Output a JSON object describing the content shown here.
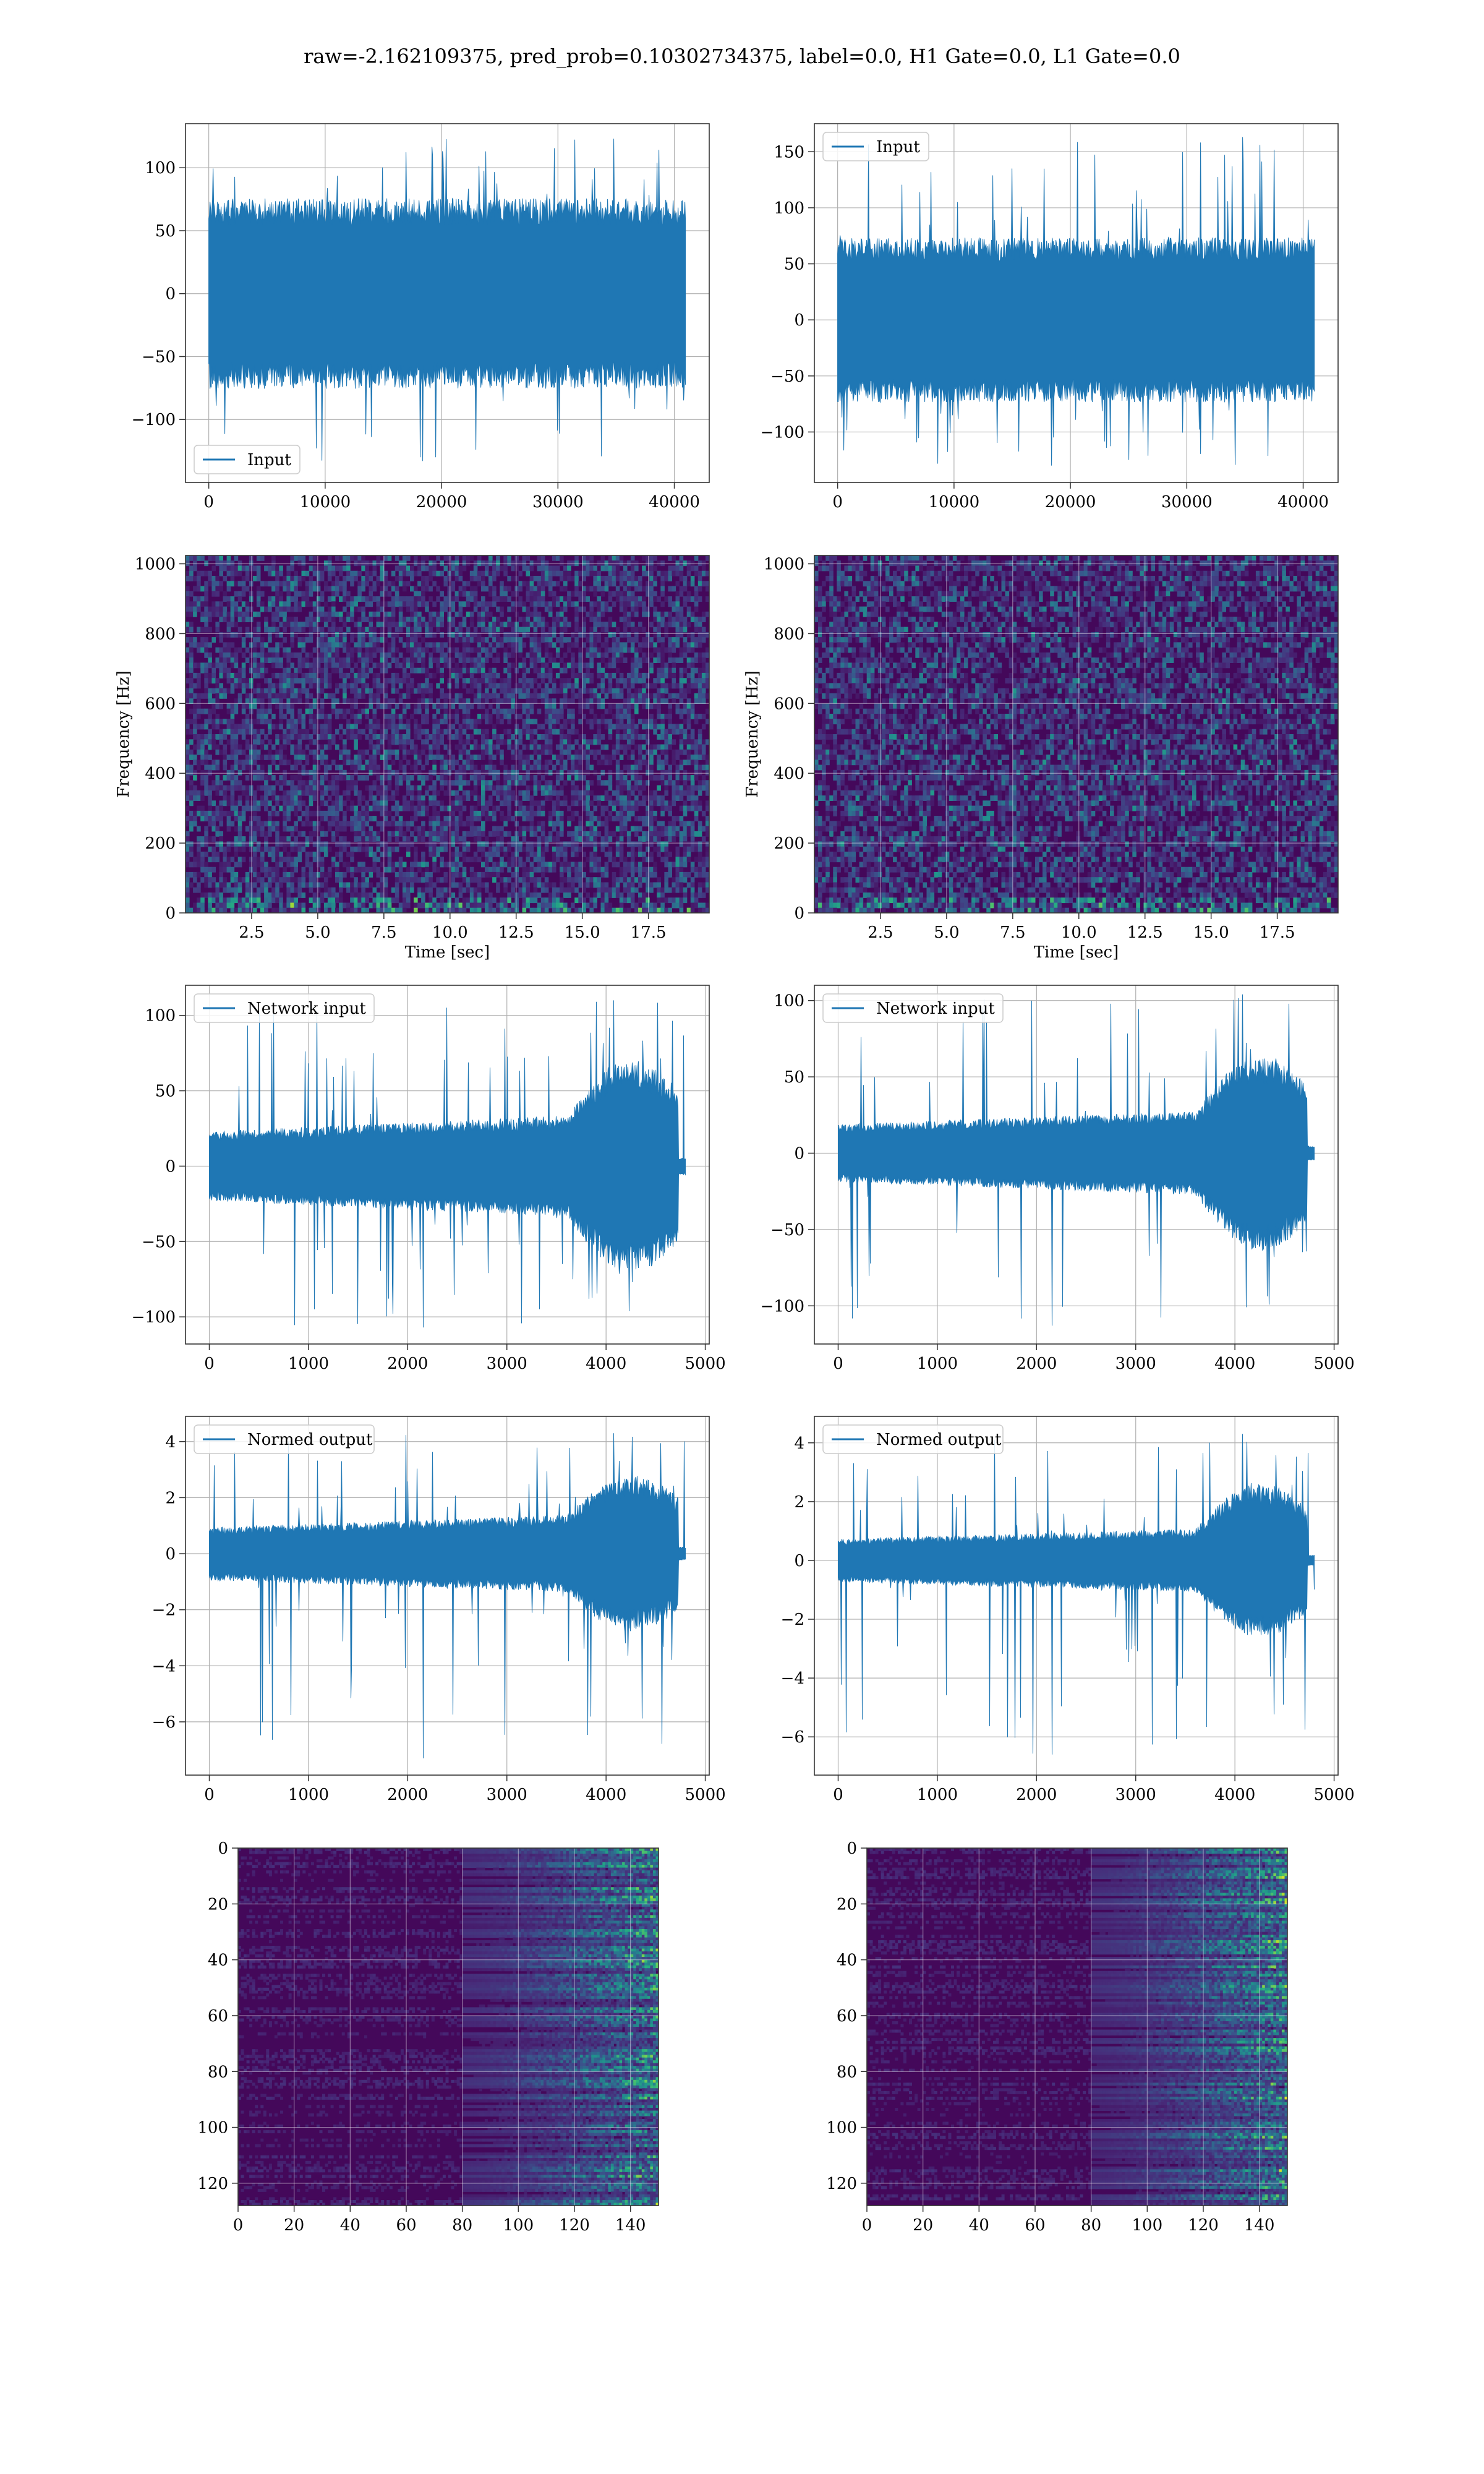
{
  "title": "raw=-2.162109375, pred_prob=0.10302734375, label=0.0, H1 Gate=0.0, L1 Gate=0.0",
  "colors": {
    "line": "#1f77b4",
    "grid": "#b0b0b0",
    "axes": "#333333"
  },
  "chart_data": [
    {
      "id": "h1-input",
      "type": "line",
      "series": [
        {
          "name": "Input",
          "values": []
        }
      ],
      "xlim": [
        -2000,
        43000
      ],
      "ylim": [
        -150,
        135
      ],
      "xticks": [
        0,
        10000,
        20000,
        30000,
        40000
      ],
      "xtick_labels": [
        "0",
        "10000",
        "20000",
        "30000",
        "40000"
      ],
      "yticks": [
        -100,
        -50,
        0,
        50,
        100
      ],
      "ytick_labels": [
        "−100",
        "−50",
        "0",
        "50",
        "100"
      ],
      "legend": "lower-left",
      "grid": true,
      "xlabel": "",
      "ylabel": "",
      "signal": {
        "n_points": 40960,
        "amplitude": 72,
        "spike_max": 123,
        "spike_min": -133
      }
    },
    {
      "id": "l1-input",
      "type": "line",
      "series": [
        {
          "name": "Input",
          "values": []
        }
      ],
      "xlim": [
        -2000,
        43000
      ],
      "ylim": [
        -145,
        175
      ],
      "xticks": [
        0,
        10000,
        20000,
        30000,
        40000
      ],
      "xtick_labels": [
        "0",
        "10000",
        "20000",
        "30000",
        "40000"
      ],
      "yticks": [
        -100,
        -50,
        0,
        50,
        100,
        150
      ],
      "ytick_labels": [
        "−100",
        "−50",
        "0",
        "50",
        "100",
        "150"
      ],
      "legend": "top-left",
      "grid": true,
      "xlabel": "",
      "ylabel": "",
      "signal": {
        "n_points": 40960,
        "amplitude": 70,
        "spike_max": 163,
        "spike_min": -130
      }
    },
    {
      "id": "h1-spectrogram",
      "type": "heatmap",
      "colormap": "viridis",
      "xlim": [
        0,
        19.8
      ],
      "ylim": [
        0,
        1024
      ],
      "xticks": [
        2.5,
        5,
        7.5,
        10,
        12.5,
        15,
        17.5
      ],
      "xtick_labels": [
        "2.5",
        "5.0",
        "7.5",
        "10.0",
        "12.5",
        "15.0",
        "17.5"
      ],
      "yticks": [
        0,
        200,
        400,
        600,
        800,
        1000
      ],
      "ytick_labels": [
        "0",
        "200",
        "400",
        "600",
        "800",
        "1000"
      ],
      "xlabel": "Time [sec]",
      "ylabel": "Frequency [Hz]",
      "grid": true
    },
    {
      "id": "l1-spectrogram",
      "type": "heatmap",
      "colormap": "viridis",
      "xlim": [
        0,
        19.8
      ],
      "ylim": [
        0,
        1024
      ],
      "xticks": [
        2.5,
        5,
        7.5,
        10,
        12.5,
        15,
        17.5
      ],
      "xtick_labels": [
        "2.5",
        "5.0",
        "7.5",
        "10.0",
        "12.5",
        "15.0",
        "17.5"
      ],
      "yticks": [
        0,
        200,
        400,
        600,
        800,
        1000
      ],
      "ytick_labels": [
        "0",
        "200",
        "400",
        "600",
        "800",
        "1000"
      ],
      "xlabel": "Time [sec]",
      "ylabel": "Frequency [Hz]",
      "grid": true
    },
    {
      "id": "h1-network-input",
      "type": "line",
      "series": [
        {
          "name": "Network input",
          "values": []
        }
      ],
      "xlim": [
        -240,
        5040
      ],
      "ylim": [
        -118,
        120
      ],
      "xticks": [
        0,
        1000,
        2000,
        3000,
        4000,
        5000
      ],
      "xtick_labels": [
        "0",
        "1000",
        "2000",
        "3000",
        "4000",
        "5000"
      ],
      "yticks": [
        -100,
        -50,
        0,
        50,
        100
      ],
      "ytick_labels": [
        "−100",
        "−50",
        "0",
        "50",
        "100"
      ],
      "legend": "top-left",
      "grid": true,
      "xlabel": "",
      "ylabel": "",
      "signal": {
        "n_points": 4800,
        "amplitude": 22,
        "spike_max": 110,
        "spike_min": -107
      }
    },
    {
      "id": "l1-network-input",
      "type": "line",
      "series": [
        {
          "name": "Network input",
          "values": []
        }
      ],
      "xlim": [
        -240,
        5040
      ],
      "ylim": [
        -125,
        110
      ],
      "xticks": [
        0,
        1000,
        2000,
        3000,
        4000,
        5000
      ],
      "xtick_labels": [
        "0",
        "1000",
        "2000",
        "3000",
        "4000",
        "5000"
      ],
      "yticks": [
        -100,
        -50,
        0,
        50,
        100
      ],
      "ytick_labels": [
        "−100",
        "−50",
        "0",
        "50",
        "100"
      ],
      "legend": "top-left",
      "grid": true,
      "xlabel": "",
      "ylabel": "",
      "signal": {
        "n_points": 4800,
        "amplitude": 18,
        "spike_max": 104,
        "spike_min": -113
      }
    },
    {
      "id": "h1-normed-output",
      "type": "line",
      "series": [
        {
          "name": "Normed output",
          "values": []
        }
      ],
      "xlim": [
        -240,
        5040
      ],
      "ylim": [
        -7.9,
        4.9
      ],
      "xticks": [
        0,
        1000,
        2000,
        3000,
        4000,
        5000
      ],
      "xtick_labels": [
        "0",
        "1000",
        "2000",
        "3000",
        "4000",
        "5000"
      ],
      "yticks": [
        -6,
        -4,
        -2,
        0,
        2,
        4
      ],
      "ytick_labels": [
        "−6",
        "−4",
        "−2",
        "0",
        "2",
        "4"
      ],
      "legend": "top-left",
      "grid": true,
      "xlabel": "",
      "ylabel": "",
      "signal": {
        "n_points": 4800,
        "amplitude": 0.9,
        "spike_max": 4.3,
        "spike_min": -7.3
      }
    },
    {
      "id": "l1-normed-output",
      "type": "line",
      "series": [
        {
          "name": "Normed output",
          "values": []
        }
      ],
      "xlim": [
        -240,
        5040
      ],
      "ylim": [
        -7.3,
        4.9
      ],
      "xticks": [
        0,
        1000,
        2000,
        3000,
        4000,
        5000
      ],
      "xtick_labels": [
        "0",
        "1000",
        "2000",
        "3000",
        "4000",
        "5000"
      ],
      "yticks": [
        -6,
        -4,
        -2,
        0,
        2,
        4
      ],
      "ytick_labels": [
        "−6",
        "−4",
        "−2",
        "0",
        "2",
        "4"
      ],
      "legend": "top-left",
      "grid": true,
      "xlabel": "",
      "ylabel": "",
      "signal": {
        "n_points": 4800,
        "amplitude": 0.7,
        "spike_max": 4.3,
        "spike_min": -6.6
      }
    },
    {
      "id": "h1-feature-map",
      "type": "heatmap",
      "colormap": "viridis",
      "xlim": [
        0,
        150
      ],
      "ylim": [
        128,
        0
      ],
      "xticks": [
        0,
        20,
        40,
        60,
        80,
        100,
        120,
        140
      ],
      "xtick_labels": [
        "0",
        "20",
        "40",
        "60",
        "80",
        "100",
        "120",
        "140"
      ],
      "yticks": [
        0,
        20,
        40,
        60,
        80,
        100,
        120
      ],
      "ytick_labels": [
        "0",
        "20",
        "40",
        "60",
        "80",
        "100",
        "120"
      ],
      "xlabel": "",
      "ylabel": "",
      "grid": true
    },
    {
      "id": "l1-feature-map",
      "type": "heatmap",
      "colormap": "viridis",
      "xlim": [
        0,
        150
      ],
      "ylim": [
        128,
        0
      ],
      "xticks": [
        0,
        20,
        40,
        60,
        80,
        100,
        120,
        140
      ],
      "xtick_labels": [
        "0",
        "20",
        "40",
        "60",
        "80",
        "100",
        "120",
        "140"
      ],
      "yticks": [
        0,
        20,
        40,
        60,
        80,
        100,
        120
      ],
      "ytick_labels": [
        "0",
        "20",
        "40",
        "60",
        "80",
        "100",
        "120"
      ],
      "xlabel": "",
      "ylabel": "",
      "grid": true
    }
  ]
}
